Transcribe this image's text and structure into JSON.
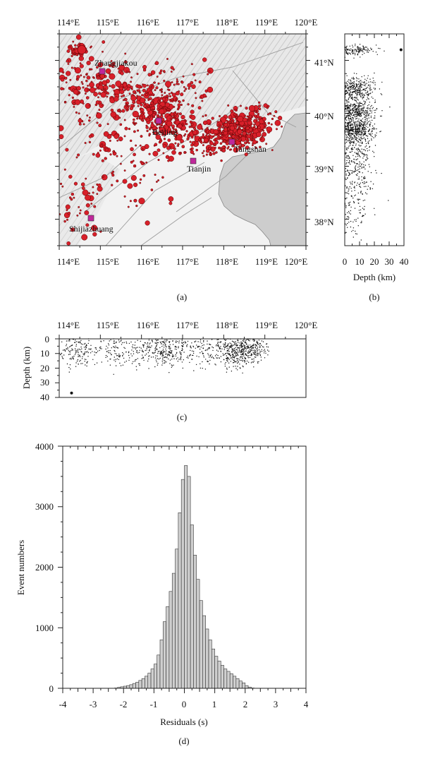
{
  "panel_a": {
    "letter": "(a)",
    "lon_labels": [
      "114°E",
      "115°E",
      "116°E",
      "117°E",
      "118°E",
      "119°E",
      "120°E"
    ],
    "lat_labels": [
      "41°N",
      "40°N",
      "39°N",
      "38°N"
    ],
    "lon_range": [
      114,
      120
    ],
    "lat_range": [
      37.5,
      41.5
    ],
    "cities": [
      {
        "name": "Zhangjiakou",
        "lon": 115.0,
        "lat": 40.8
      },
      {
        "name": "Beijing",
        "lon": 116.35,
        "lat": 39.9
      },
      {
        "name": "Tianjin",
        "lon": 117.2,
        "lat": 39.1
      },
      {
        "name": "Tangshan",
        "lon": 118.2,
        "lat": 39.62
      },
      {
        "name": "Shijiazhuang",
        "lon": 114.75,
        "lat": 38.05
      }
    ],
    "colors": {
      "land": "#e6e6e6",
      "sea": "#cccccc",
      "quake_fill": "#d8202a",
      "quake_edge": "#5a0000",
      "city": "#c0289b"
    }
  },
  "panel_b": {
    "letter": "(b)",
    "xlabel": "Depth (km)",
    "x_ticks": [
      "0",
      "10",
      "20",
      "30",
      "40"
    ],
    "x_range": [
      0,
      40
    ]
  },
  "panel_c": {
    "letter": "(c)",
    "ylabel": "Depth (km)",
    "lon_labels": [
      "114°E",
      "115°E",
      "116°E",
      "117°E",
      "118°E",
      "119°E",
      "120°E"
    ],
    "y_ticks": [
      "0",
      "10",
      "20",
      "30",
      "40"
    ],
    "y_range": [
      0,
      40
    ]
  },
  "chart_data": {
    "type": "bar",
    "letter": "(d)",
    "title": "",
    "xlabel": "Residuals (s)",
    "ylabel": "Event numbers",
    "xlim": [
      -4,
      4
    ],
    "ylim": [
      0,
      4000
    ],
    "x_ticks": [
      "-4",
      "-3",
      "-2",
      "-1",
      "0",
      "1",
      "2",
      "3",
      "4"
    ],
    "y_ticks": [
      "0",
      "1000",
      "2000",
      "3000",
      "4000"
    ],
    "bin_width": 0.1,
    "bin_centers": [
      -2.25,
      -2.15,
      -2.05,
      -1.95,
      -1.85,
      -1.75,
      -1.65,
      -1.55,
      -1.45,
      -1.35,
      -1.25,
      -1.15,
      -1.05,
      -0.95,
      -0.85,
      -0.75,
      -0.65,
      -0.55,
      -0.45,
      -0.35,
      -0.25,
      -0.15,
      -0.05,
      0.05,
      0.15,
      0.25,
      0.35,
      0.45,
      0.55,
      0.65,
      0.75,
      0.85,
      0.95,
      1.05,
      1.15,
      1.25,
      1.35,
      1.45,
      1.55,
      1.65,
      1.75,
      1.85,
      1.95,
      2.05,
      2.15,
      2.25
    ],
    "values": [
      5,
      15,
      25,
      35,
      45,
      60,
      80,
      100,
      130,
      160,
      200,
      250,
      320,
      400,
      550,
      800,
      1100,
      1350,
      1600,
      1900,
      2300,
      2900,
      3450,
      3680,
      3500,
      2700,
      2200,
      1800,
      1450,
      1200,
      980,
      800,
      650,
      530,
      450,
      380,
      320,
      280,
      240,
      200,
      160,
      120,
      90,
      45,
      20,
      5
    ],
    "colors": {
      "bar_fill": "#cfcfcf",
      "bar_edge": "#333333"
    }
  }
}
